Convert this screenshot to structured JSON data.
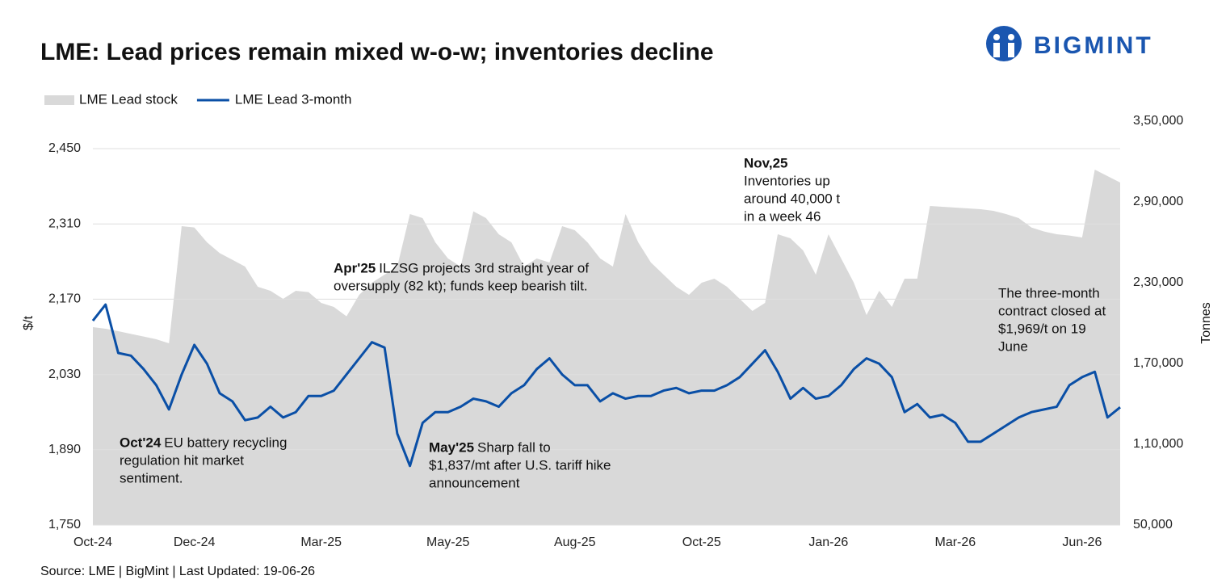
{
  "chart_data": {
    "type": "line",
    "title": "LME: Lead prices remain mixed w-o-w; inventories decline",
    "logo": "BIGMINT",
    "source": "Source: LME | BigMint | Last Updated: 19-06-26",
    "y_label": "$/t",
    "y2_label": "Tonnes",
    "categories": [
      "Oct-24",
      null,
      null,
      null,
      null,
      null,
      null,
      null,
      "Dec-24",
      null,
      null,
      null,
      null,
      null,
      null,
      null,
      null,
      null,
      "Mar-25",
      null,
      null,
      null,
      null,
      null,
      null,
      null,
      null,
      null,
      "May-25",
      null,
      null,
      null,
      null,
      null,
      null,
      null,
      null,
      null,
      "Aug-25",
      null,
      null,
      null,
      null,
      null,
      null,
      null,
      null,
      null,
      "Oct-25",
      null,
      null,
      null,
      null,
      null,
      null,
      null,
      null,
      null,
      "Jan-26",
      null,
      null,
      null,
      null,
      null,
      null,
      null,
      null,
      null,
      "Mar-26",
      null,
      null,
      null,
      null,
      null,
      null,
      null,
      null,
      null,
      "Jun-26",
      null,
      null,
      null
    ],
    "series": [
      {
        "name": "LME Lead stock",
        "type": "area",
        "axis": "y2",
        "color": "#d9d9d9",
        "values": [
          197000,
          195800,
          194000,
          192000,
          190000,
          188000,
          185000,
          272000,
          271000,
          260000,
          252000,
          247000,
          242000,
          227000,
          224000,
          218000,
          224000,
          223000,
          215000,
          212000,
          205000,
          221000,
          230000,
          236000,
          242000,
          281000,
          278000,
          260000,
          248000,
          242000,
          283000,
          278000,
          266000,
          260000,
          242000,
          248000,
          245000,
          272000,
          269000,
          260000,
          248000,
          242000,
          281000,
          260000,
          245000,
          236000,
          227000,
          221000,
          230000,
          233000,
          227000,
          218000,
          209000,
          215000,
          266000,
          263000,
          254000,
          236000,
          266000,
          248000,
          230000,
          206000,
          224000,
          212000,
          233000,
          233000,
          287000,
          286400,
          285800,
          285200,
          284600,
          283400,
          281000,
          278000,
          271000,
          268000,
          266000,
          265000,
          263600,
          314000,
          309200,
          304400
        ]
      },
      {
        "name": "LME Lead 3-month",
        "type": "line",
        "color": "#0a4fa6",
        "values": [
          2130,
          2160,
          2070,
          2065,
          2040,
          2010,
          1965,
          2030,
          2085,
          2050,
          1995,
          1980,
          1945,
          1950,
          1970,
          1950,
          1960,
          1990,
          1990,
          2000,
          2030,
          2060,
          2090,
          2080,
          1920,
          1860,
          1940,
          1960,
          1960,
          1970,
          1985,
          1980,
          1970,
          1995,
          2010,
          2040,
          2060,
          2030,
          2010,
          2010,
          1980,
          1995,
          1985,
          1990,
          1990,
          2000,
          2005,
          1995,
          2000,
          2000,
          2010,
          2025,
          2050,
          2075,
          2035,
          1985,
          2005,
          1985,
          1990,
          2010,
          2040,
          2060,
          2050,
          2025,
          1960,
          1975,
          1950,
          1955,
          1940,
          1905,
          1905,
          1920,
          1935,
          1950,
          1960,
          1965,
          1970,
          2010,
          2025,
          2035,
          1950,
          1969
        ]
      }
    ],
    "ylim": [
      1750,
      2450
    ],
    "yticks": [
      {
        "value": 1750,
        "label": "1,750"
      },
      {
        "value": 1890,
        "label": "1,890"
      },
      {
        "value": 2030,
        "label": "2,030"
      },
      {
        "value": 2170,
        "label": "2,170"
      },
      {
        "value": 2310,
        "label": "2,310"
      },
      {
        "value": 2450,
        "label": "2,450"
      }
    ],
    "y2lim": [
      50000,
      350000
    ],
    "y2ticks": [
      {
        "value": 50000,
        "label": "50,000"
      },
      {
        "value": 110000,
        "label": "1,10,000"
      },
      {
        "value": 170000,
        "label": "1,70,000"
      },
      {
        "value": 230000,
        "label": "2,30,000"
      },
      {
        "value": 290000,
        "label": "2,90,000"
      },
      {
        "value": 350000,
        "label": "3,50,000"
      }
    ],
    "grid": true,
    "annotations": [
      {
        "title": "Oct'24",
        "text": [
          "EU battery recycling",
          "regulation hit market",
          "sentiment."
        ]
      },
      {
        "title": "Apr'25",
        "text": [
          "ILZSG projects 3rd straight year of",
          "oversupply (82 kt); funds keep bearish tilt."
        ]
      },
      {
        "title": "May'25",
        "text": [
          "Sharp fall to",
          "$1,837/mt after U.S. tariff hike",
          "announcement"
        ]
      },
      {
        "title": "Nov,25",
        "text": [
          "Inventories up",
          "around 40,000 t",
          "in a week 46"
        ]
      },
      {
        "text": [
          "The three-month",
          "contract closed at",
          "$1,969/t on 19",
          "June"
        ]
      }
    ]
  }
}
